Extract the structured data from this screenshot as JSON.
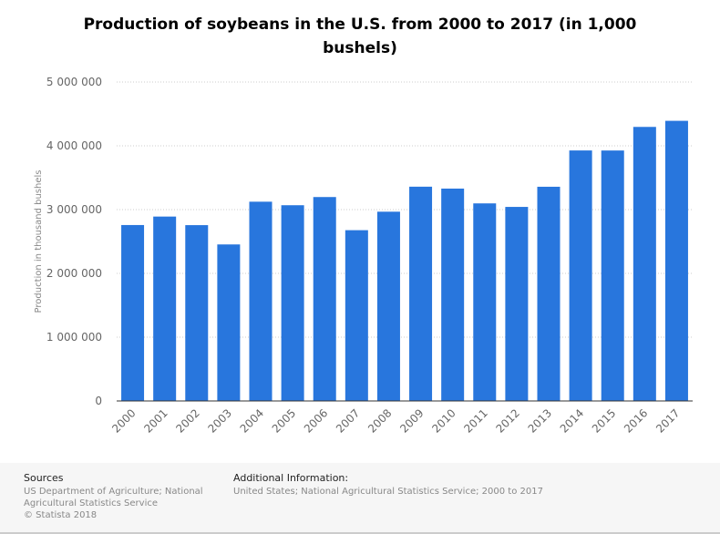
{
  "chart_data": {
    "type": "bar",
    "title": "Production of soybeans in the U.S. from 2000 to 2017 (in 1,000 bushels)",
    "xlabel": "",
    "ylabel": "Production in thousand bushels",
    "ylim": [
      0,
      5000000
    ],
    "yticks": [
      0,
      1000000,
      2000000,
      3000000,
      4000000,
      5000000
    ],
    "ytick_labels": [
      "0",
      "1 000 000",
      "2 000 000",
      "3 000 000",
      "4 000 000",
      "5 000 000"
    ],
    "grid": true,
    "categories": [
      "2000",
      "2001",
      "2002",
      "2003",
      "2004",
      "2005",
      "2006",
      "2007",
      "2008",
      "2009",
      "2010",
      "2011",
      "2012",
      "2013",
      "2014",
      "2015",
      "2016",
      "2017"
    ],
    "values": [
      2757810,
      2890682,
      2756147,
      2453665,
      3123686,
      3068342,
      3196726,
      2677117,
      2967007,
      3359011,
      3329181,
      3097179,
      3042044,
      3357984,
      3927090,
      3926339,
      4296086,
      4391553
    ],
    "bar_color": "#2876dd"
  },
  "footer": {
    "sources_label": "Sources",
    "sources_line1": "US Department of Agriculture; National",
    "sources_line2": "Agricultural Statistics Service",
    "copyright": "© Statista 2018",
    "additional_label": "Additional Information:",
    "additional_text": "United States; National Agricultural Statistics Service; 2000 to 2017"
  }
}
